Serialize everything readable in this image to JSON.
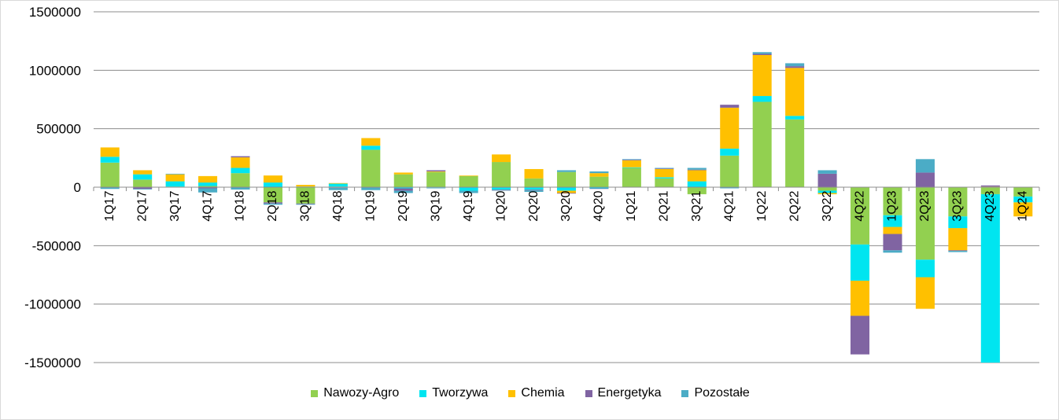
{
  "chart_data": {
    "type": "bar",
    "stacked": true,
    "categories": [
      "1Q17",
      "2Q17",
      "3Q17",
      "4Q17",
      "1Q18",
      "2Q18",
      "3Q18",
      "4Q18",
      "1Q19",
      "2Q19",
      "3Q19",
      "4Q19",
      "1Q20",
      "2Q20",
      "3Q20",
      "4Q20",
      "1Q21",
      "2Q21",
      "3Q21",
      "4Q21",
      "1Q22",
      "2Q22",
      "3Q22",
      "4Q22",
      "1Q23",
      "2Q23",
      "3Q23",
      "4Q23",
      "1Q24"
    ],
    "y_ticks": [
      "1500000",
      "1000000",
      "500000",
      "0",
      "-500000",
      "-1000000",
      "-1500000"
    ],
    "ylim": [
      -1500000,
      1500000
    ],
    "grid": true,
    "legend_position": "bottom",
    "series": [
      {
        "name": "Nawozy-Agro",
        "color": "#92d050",
        "values": [
          210000,
          65000,
          5000,
          10000,
          120000,
          -130000,
          -140000,
          5000,
          320000,
          110000,
          130000,
          95000,
          215000,
          75000,
          130000,
          90000,
          165000,
          75000,
          -60000,
          270000,
          730000,
          580000,
          -30000,
          -490000,
          -240000,
          -620000,
          -250000,
          -60000,
          -80000
        ]
      },
      {
        "name": "Tworzywa",
        "color": "#00e5f0",
        "values": [
          50000,
          45000,
          45000,
          30000,
          45000,
          40000,
          5000,
          25000,
          35000,
          -10000,
          -5000,
          -30000,
          -20000,
          -20000,
          -30000,
          -10000,
          5000,
          10000,
          50000,
          60000,
          50000,
          30000,
          -20000,
          -310000,
          -100000,
          -150000,
          -100000,
          -1440000,
          -50000
        ]
      },
      {
        "name": "Chemia",
        "color": "#ffc000",
        "values": [
          80000,
          35000,
          60000,
          55000,
          90000,
          60000,
          15000,
          5000,
          65000,
          15000,
          5000,
          5000,
          65000,
          80000,
          -20000,
          30000,
          60000,
          70000,
          95000,
          350000,
          350000,
          410000,
          -10000,
          -300000,
          -60000,
          -270000,
          -190000,
          5000,
          -120000
        ]
      },
      {
        "name": "Energetyka",
        "color": "#8064a2",
        "values": [
          0,
          -15000,
          0,
          -10000,
          10000,
          -10000,
          -5000,
          -5000,
          0,
          -20000,
          10000,
          0,
          -5000,
          -5000,
          -5000,
          -5000,
          5000,
          5000,
          5000,
          25000,
          10000,
          15000,
          115000,
          -330000,
          -140000,
          125000,
          -5000,
          10000,
          0
        ]
      },
      {
        "name": "Pozostałe",
        "color": "#4bacc6",
        "values": [
          -15000,
          -5000,
          5000,
          -35000,
          -20000,
          -10000,
          -5000,
          -20000,
          -25000,
          -20000,
          -5000,
          -20000,
          -5000,
          -15000,
          15000,
          15000,
          5000,
          5000,
          15000,
          -10000,
          15000,
          25000,
          30000,
          0,
          -20000,
          115000,
          -10000,
          0,
          0
        ]
      }
    ]
  }
}
